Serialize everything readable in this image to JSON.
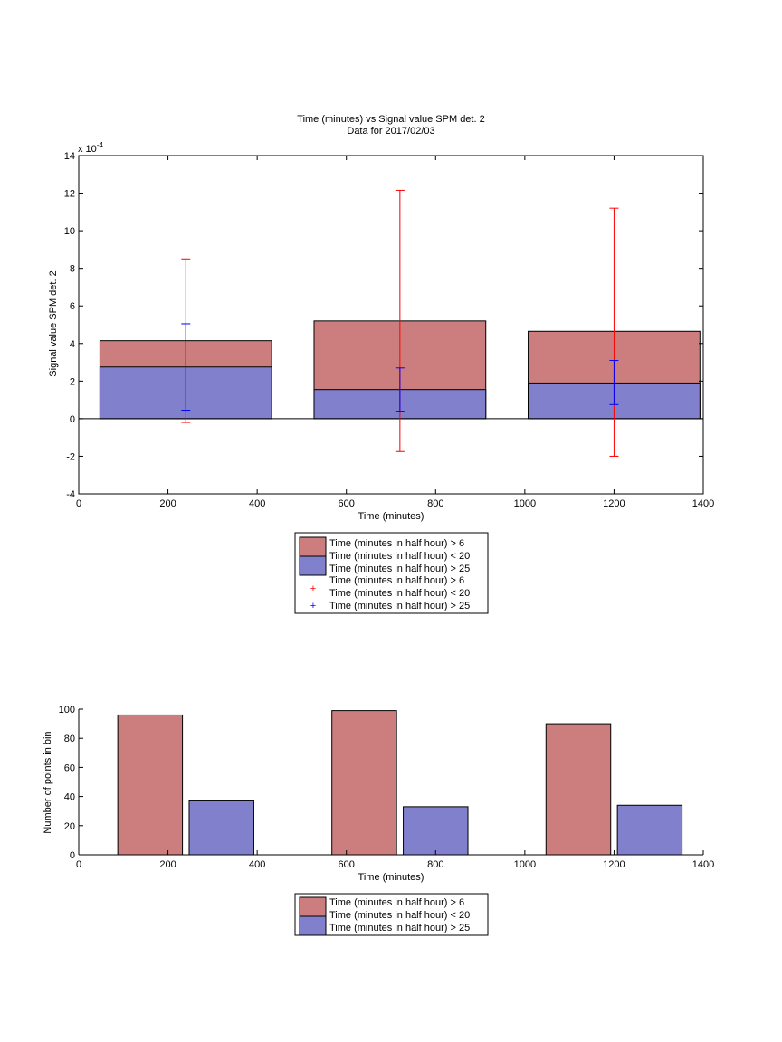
{
  "chart_data": [
    {
      "type": "bar",
      "title": "Time (minutes) vs Signal value SPM det. 2",
      "subtitle": "Data for 2017/02/03",
      "xlabel": "Time (minutes)",
      "ylabel": "Signal value SPM det. 2",
      "exponent_label": "x 10",
      "exponent_power": "-4",
      "xlim": [
        0,
        1400
      ],
      "ylim": [
        -4,
        14
      ],
      "xticks": [
        0,
        200,
        400,
        600,
        800,
        1000,
        1200,
        1400
      ],
      "yticks": [
        -4,
        -2,
        0,
        2,
        4,
        6,
        8,
        10,
        12,
        14
      ],
      "bar_width": 385,
      "series": [
        {
          "name": "Time (minutes in half hour) > 6",
          "name_line2": "Time (minutes in half hour) < 20",
          "color": "#cc7e7e",
          "bars": [
            {
              "x": 240,
              "value": 4.15
            },
            {
              "x": 720,
              "value": 5.2
            },
            {
              "x": 1200,
              "value": 4.65
            }
          ]
        },
        {
          "name": "Time (minutes in half hour) > 25",
          "color": "#8080cc",
          "bars": [
            {
              "x": 240,
              "value": 2.75
            },
            {
              "x": 720,
              "value": 1.55
            },
            {
              "x": 1200,
              "value": 1.9
            }
          ]
        }
      ],
      "errorbars": [
        {
          "name": "Time (minutes in half hour) > 6",
          "name_line2": "Time (minutes in half hour) < 20",
          "color": "#ff0000",
          "points": [
            {
              "x": 240,
              "low": -0.2,
              "high": 8.5
            },
            {
              "x": 720,
              "low": -1.75,
              "high": 12.15
            },
            {
              "x": 1200,
              "low": -2.0,
              "high": 11.2
            }
          ]
        },
        {
          "name": "Time (minutes in half hour) > 25",
          "color": "#0000ff",
          "points": [
            {
              "x": 240,
              "low": 0.45,
              "high": 5.05
            },
            {
              "x": 720,
              "low": 0.4,
              "high": 2.7
            },
            {
              "x": 1200,
              "low": 0.75,
              "high": 3.1
            }
          ]
        }
      ],
      "legend_position": "below"
    },
    {
      "type": "bar",
      "xlabel": "Time (minutes)",
      "ylabel": "Number of points in bin",
      "xlim": [
        0,
        1400
      ],
      "ylim": [
        0,
        100
      ],
      "xticks": [
        0,
        200,
        400,
        600,
        800,
        1000,
        1200,
        1400
      ],
      "yticks": [
        0,
        20,
        40,
        60,
        80,
        100
      ],
      "series": [
        {
          "name": "Time (minutes in half hour) > 6",
          "name_line2": "Time (minutes in half hour) < 20",
          "color": "#cc7e7e",
          "bars": [
            {
              "x": 160,
              "width": 145,
              "value": 96
            },
            {
              "x": 640,
              "width": 145,
              "value": 99
            },
            {
              "x": 1120,
              "width": 145,
              "value": 90
            }
          ]
        },
        {
          "name": "Time (minutes in half hour) > 25",
          "color": "#8080cc",
          "bars": [
            {
              "x": 320,
              "width": 145,
              "value": 37
            },
            {
              "x": 800,
              "width": 145,
              "value": 33
            },
            {
              "x": 1280,
              "width": 145,
              "value": 34
            }
          ]
        }
      ],
      "legend_position": "below"
    }
  ]
}
